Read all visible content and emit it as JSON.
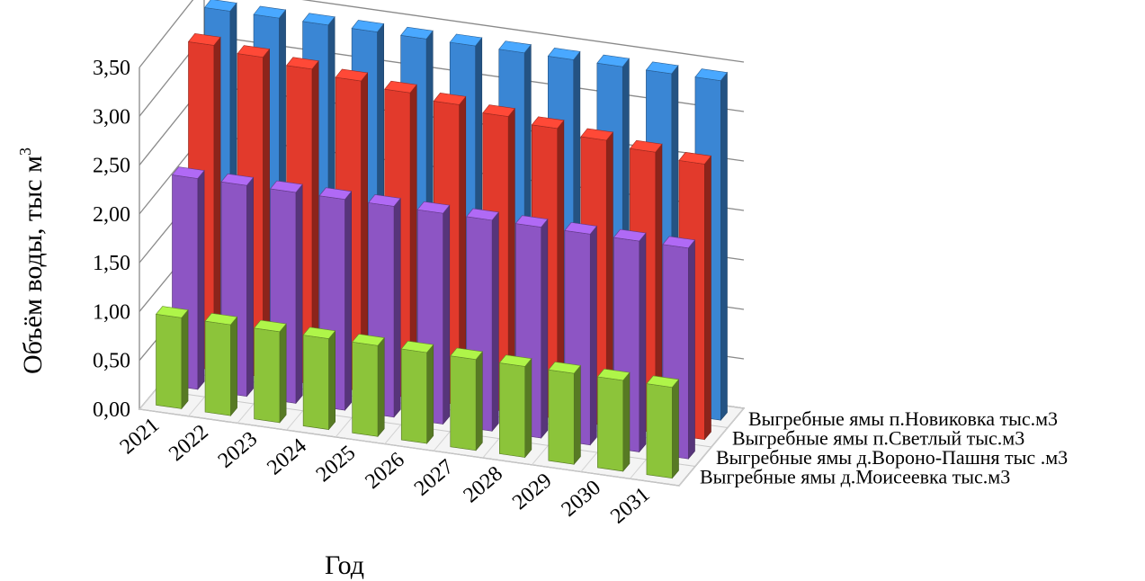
{
  "chart_data": {
    "type": "bar",
    "subtype": "3d-column",
    "title": "",
    "xlabel": "Год",
    "ylabel": "Объём воды, тыс м",
    "ylabel_sup": "3",
    "ylim": [
      0,
      3.5
    ],
    "yticks": [
      "0,00",
      "0,50",
      "1,00",
      "1,50",
      "2,00",
      "2,50",
      "3,00",
      "3,50"
    ],
    "grid": true,
    "categories": [
      "2021",
      "2022",
      "2023",
      "2024",
      "2025",
      "2026",
      "2027",
      "2028",
      "2029",
      "2030",
      "2031"
    ],
    "series": [
      {
        "name": "Выгребные ямы п.Новиковка  тыс.м3",
        "color": "#3a86d4",
        "values": [
          3.44,
          3.44,
          3.44,
          3.44,
          3.44,
          3.44,
          3.44,
          3.44,
          3.44,
          3.44,
          3.44
        ]
      },
      {
        "name": "Выгребные ямы п.Светлый тыс.м3",
        "color": "#e23a2c",
        "values": [
          3.3,
          3.25,
          3.2,
          3.15,
          3.1,
          3.05,
          3.0,
          2.95,
          2.9,
          2.85,
          2.8
        ]
      },
      {
        "name": "Выгребные ямы д.Вороно-Пашня тыс .м3",
        "color": "#8d55c4",
        "values": [
          2.15,
          2.15,
          2.15,
          2.15,
          2.15,
          2.15,
          2.15,
          2.15,
          2.15,
          2.15,
          2.15
        ]
      },
      {
        "name": "Выгребные ямы д.Моисеевка тыс.м3",
        "color": "#8cc43a",
        "values": [
          0.93,
          0.93,
          0.93,
          0.93,
          0.93,
          0.93,
          0.93,
          0.93,
          0.93,
          0.93,
          0.93
        ]
      }
    ]
  }
}
